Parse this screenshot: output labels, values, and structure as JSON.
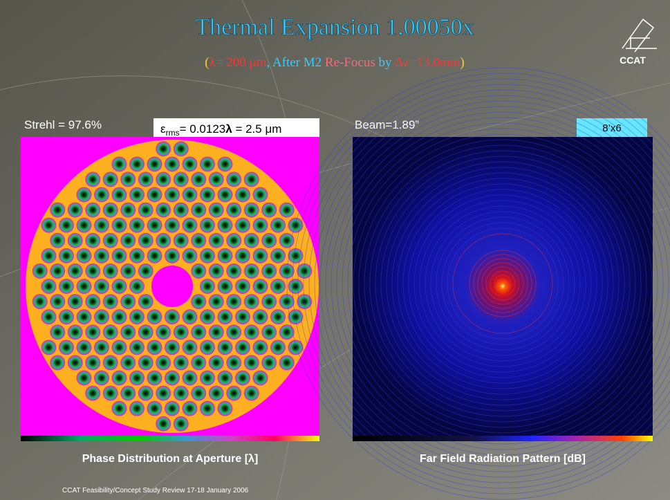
{
  "header": {
    "title": "Thermal Expansion 1.00050x",
    "subtitle": [
      "(",
      "λ= 200 μm",
      ", After M2 ",
      "Re-Focus",
      " by ",
      "Δz=13.0mm",
      ")"
    ],
    "logo": "CCAT"
  },
  "left_panel": {
    "strehl": "Strehl = 97.6%",
    "erms": [
      "ε",
      "rms",
      "= 0.0123",
      "λ",
      " = 2.5 μm"
    ],
    "caption": "Phase Distribution at Aperture [λ]"
  },
  "right_panel": {
    "beam": "Beam=1.89”",
    "box": "8’x6",
    "caption": "Far Field Radiation Pattern [dB]"
  },
  "footer": "CCAT Feasibility/Concept Study Review  17-18 January 2006"
}
